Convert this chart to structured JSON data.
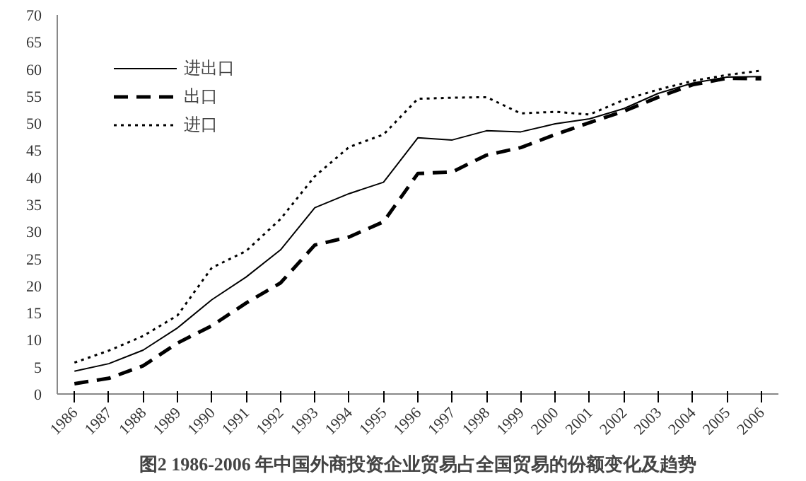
{
  "chart_data": {
    "type": "line",
    "title": "图2 1986-2006 年中国外商投资企业贸易占全国贸易的份额变化及趋势",
    "categories": [
      "1986",
      "1987",
      "1988",
      "1989",
      "1990",
      "1991",
      "1992",
      "1993",
      "1994",
      "1995",
      "1996",
      "1997",
      "1998",
      "1999",
      "2000",
      "2001",
      "2002",
      "2003",
      "2004",
      "2005",
      "2006"
    ],
    "series": [
      {
        "name": "进出口",
        "color": "#000000",
        "line_style": "solid",
        "values": [
          4.2,
          5.6,
          8.1,
          12.2,
          17.4,
          21.6,
          26.6,
          34.4,
          37.0,
          39.1,
          47.3,
          46.9,
          48.6,
          48.4,
          49.9,
          50.8,
          52.7,
          55.5,
          57.4,
          58.5,
          58.6
        ]
      },
      {
        "name": "出口",
        "color": "#000000",
        "line_style": "dashed",
        "values": [
          1.9,
          2.9,
          5.2,
          9.4,
          12.6,
          16.8,
          20.5,
          27.5,
          29.0,
          31.8,
          40.7,
          41.0,
          44.1,
          45.5,
          47.9,
          50.1,
          52.2,
          54.8,
          57.1,
          58.3,
          58.2
        ]
      },
      {
        "name": "进口",
        "color": "#000000",
        "line_style": "dotted",
        "values": [
          5.8,
          8.0,
          10.7,
          14.5,
          23.3,
          26.4,
          32.3,
          40.2,
          45.6,
          47.9,
          54.5,
          54.7,
          54.8,
          51.8,
          52.1,
          51.6,
          54.3,
          56.2,
          57.8,
          58.9,
          59.7
        ]
      }
    ],
    "ylim": [
      0,
      70
    ],
    "yticks": [
      0,
      5,
      10,
      15,
      20,
      25,
      30,
      35,
      40,
      45,
      50,
      55,
      60,
      65,
      70
    ],
    "legend": "top left",
    "grid": false,
    "marker": "none"
  }
}
